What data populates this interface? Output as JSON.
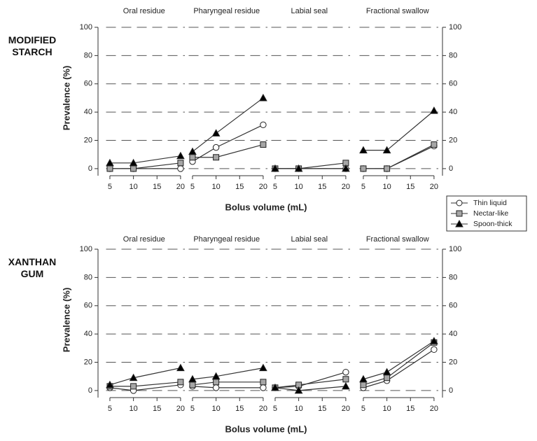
{
  "chart_data": {
    "type": "line",
    "legend_position": "right",
    "grid": true,
    "series": [
      {
        "name": "Thin liquid",
        "color": "#ffffff",
        "marker": "circle"
      },
      {
        "name": "Nectar-like",
        "color": "#a6a6a6",
        "marker": "square"
      },
      {
        "name": "Spoon-thick",
        "color": "#000000",
        "marker": "triangle"
      }
    ],
    "x": [
      5,
      10,
      20
    ],
    "xlim": [
      3,
      21.5
    ],
    "xticks": [
      5,
      10,
      15,
      20
    ],
    "ylim": [
      -5,
      100
    ],
    "yticks": [
      0,
      20,
      40,
      60,
      80,
      100
    ],
    "rows": [
      {
        "label": "MODIFIED STARCH",
        "y_label": "Prevalence (%)",
        "x_label": "Bolus volume (mL)",
        "panels": [
          {
            "title": "Oral residue",
            "series": [
              {
                "values": [
                  0,
                  0,
                  0
                ]
              },
              {
                "values": [
                  0,
                  0,
                  4
                ]
              },
              {
                "values": [
                  4,
                  4,
                  9
                ]
              }
            ]
          },
          {
            "title": "Pharyngeal residue",
            "series": [
              {
                "values": [
                  5,
                  15,
                  31
                ]
              },
              {
                "values": [
                  8,
                  8,
                  17
                ]
              },
              {
                "values": [
                  12,
                  25,
                  50
                ]
              }
            ]
          },
          {
            "title": "Labial seal",
            "series": [
              {
                "values": [
                  0,
                  0,
                  0
                ]
              },
              {
                "values": [
                  0,
                  0,
                  4
                ]
              },
              {
                "values": [
                  0,
                  0,
                  0
                ]
              }
            ]
          },
          {
            "title": "Fractional swallow",
            "series": [
              {
                "values": [
                  0,
                  0,
                  16
                ]
              },
              {
                "values": [
                  0,
                  0,
                  17
                ]
              },
              {
                "values": [
                  13,
                  13,
                  41
                ]
              }
            ]
          }
        ]
      },
      {
        "label": "XANTHAN GUM",
        "y_label": "Prevalence (%)",
        "x_label": "Bolus volume (mL)",
        "panels": [
          {
            "title": "Oral residue",
            "series": [
              {
                "values": [
                  2,
                  0,
                  4
                ]
              },
              {
                "values": [
                  3,
                  3,
                  6
                ]
              },
              {
                "values": [
                  4,
                  9,
                  16
                ]
              }
            ]
          },
          {
            "title": "Pharyngeal residue",
            "series": [
              {
                "values": [
                  3,
                  2,
                  2
                ]
              },
              {
                "values": [
                  4,
                  6,
                  6
                ]
              },
              {
                "values": [
                  8,
                  10,
                  16
                ]
              }
            ]
          },
          {
            "title": "Labial seal",
            "series": [
              {
                "values": [
                  2,
                  3,
                  13
                ]
              },
              {
                "values": [
                  2,
                  4,
                  8
                ]
              },
              {
                "values": [
                  2,
                  0,
                  3
                ]
              }
            ]
          },
          {
            "title": "Fractional swallow",
            "series": [
              {
                "values": [
                  2,
                  7,
                  29
                ]
              },
              {
                "values": [
                  4,
                  9,
                  34
                ]
              },
              {
                "values": [
                  8,
                  13,
                  35
                ]
              }
            ]
          }
        ]
      }
    ]
  }
}
